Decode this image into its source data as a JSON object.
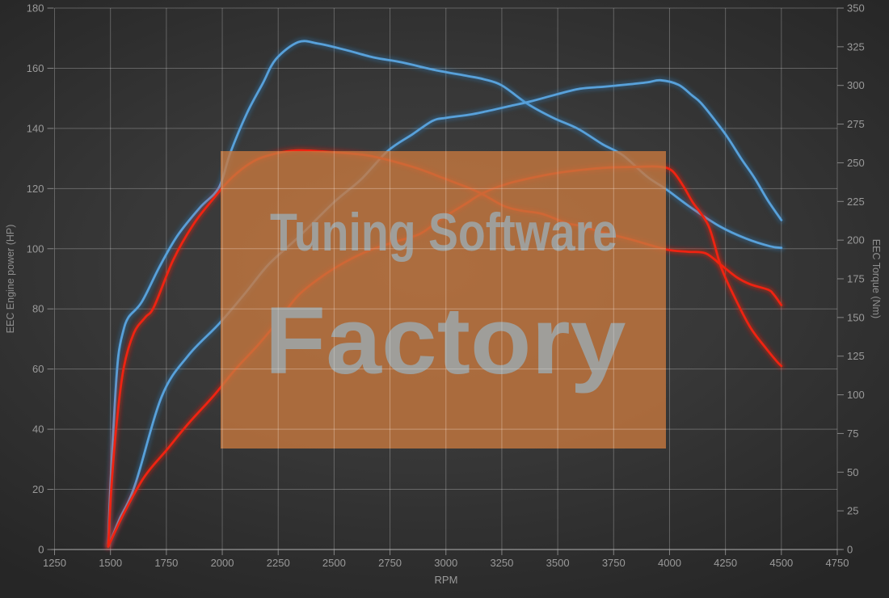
{
  "watermark": {
    "line1": "Tuning Software",
    "line2": "Factory",
    "bg_color": "#c7783f",
    "bg_opacity": 0.8,
    "text_color": "#9f9e9a"
  },
  "chart_data": {
    "type": "line",
    "title": "",
    "grid": true,
    "legend": "none",
    "x_axis": {
      "label": "RPM",
      "min": 1250,
      "max": 4750,
      "tick_step": 250
    },
    "y_axis_left": {
      "label": "EEC Engine power (HP)",
      "min": 0,
      "max": 180,
      "tick_step": 20
    },
    "y_axis_right": {
      "label": "EEC Torque (Nm)",
      "min": 0,
      "max": 350,
      "tick_step": 25
    },
    "series": [
      {
        "name": "torque-curve-blue",
        "axis": "right",
        "unit": "Nm",
        "color": "#58a1da",
        "glow_color": "#2f7ec2",
        "points": [
          [
            1490,
            4
          ],
          [
            1500,
            42
          ],
          [
            1520,
            95
          ],
          [
            1535,
            125
          ],
          [
            1555,
            140
          ],
          [
            1580,
            150
          ],
          [
            1640,
            160
          ],
          [
            1720,
            183
          ],
          [
            1800,
            203
          ],
          [
            1900,
            221
          ],
          [
            1985,
            234
          ],
          [
            2035,
            256
          ],
          [
            2110,
            282
          ],
          [
            2180,
            301
          ],
          [
            2240,
            317
          ],
          [
            2340,
            328
          ],
          [
            2430,
            327
          ],
          [
            2550,
            323
          ],
          [
            2680,
            318
          ],
          [
            2800,
            315
          ],
          [
            2950,
            310
          ],
          [
            3100,
            306
          ],
          [
            3170,
            304
          ],
          [
            3250,
            300
          ],
          [
            3366,
            288
          ],
          [
            3480,
            279
          ],
          [
            3590,
            272
          ],
          [
            3700,
            262
          ],
          [
            3790,
            255
          ],
          [
            3900,
            241
          ],
          [
            3984,
            233
          ],
          [
            4096,
            221
          ],
          [
            4223,
            209
          ],
          [
            4342,
            201
          ],
          [
            4450,
            196
          ],
          [
            4500,
            195
          ]
        ]
      },
      {
        "name": "power-curve-blue",
        "axis": "left",
        "unit": "HP",
        "color": "#58a1da",
        "glow_color": "#2f7ec2",
        "points": [
          [
            1490,
            1
          ],
          [
            1540,
            10
          ],
          [
            1610,
            21.5
          ],
          [
            1730,
            51
          ],
          [
            1848,
            64.5
          ],
          [
            1985,
            75
          ],
          [
            2100,
            85
          ],
          [
            2210,
            95
          ],
          [
            2343,
            104
          ],
          [
            2500,
            115.5
          ],
          [
            2620,
            123
          ],
          [
            2740,
            132.5
          ],
          [
            2850,
            138
          ],
          [
            2940,
            142.5
          ],
          [
            3000,
            143.5
          ],
          [
            3100,
            144.5
          ],
          [
            3170,
            145.5
          ],
          [
            3290,
            147.5
          ],
          [
            3380,
            149
          ],
          [
            3490,
            151.2
          ],
          [
            3600,
            153.2
          ],
          [
            3700,
            153.8
          ],
          [
            3800,
            154.5
          ],
          [
            3900,
            155.3
          ],
          [
            3960,
            156
          ],
          [
            4040,
            154.5
          ],
          [
            4100,
            151
          ],
          [
            4140,
            148.5
          ],
          [
            4200,
            143
          ],
          [
            4260,
            137
          ],
          [
            4320,
            130
          ],
          [
            4380,
            123.5
          ],
          [
            4440,
            116
          ],
          [
            4500,
            109.5
          ]
        ]
      },
      {
        "name": "torque-curve-red",
        "axis": "right",
        "unit": "Nm",
        "color": "#ef2312",
        "glow_color": "#ff1e0e",
        "points": [
          [
            1490,
            2
          ],
          [
            1505,
            42
          ],
          [
            1530,
            85
          ],
          [
            1560,
            118
          ],
          [
            1605,
            140
          ],
          [
            1655,
            150
          ],
          [
            1695,
            157
          ],
          [
            1780,
            187
          ],
          [
            1870,
            210
          ],
          [
            1950,
            225
          ],
          [
            2040,
            240
          ],
          [
            2140,
            251
          ],
          [
            2240,
            256
          ],
          [
            2330,
            258
          ],
          [
            2430,
            257.5
          ],
          [
            2530,
            256.5
          ],
          [
            2640,
            255
          ],
          [
            2750,
            251.5
          ],
          [
            2880,
            246
          ],
          [
            2990,
            240
          ],
          [
            3080,
            235
          ],
          [
            3160,
            230
          ],
          [
            3260,
            222
          ],
          [
            3340,
            219
          ],
          [
            3430,
            217
          ],
          [
            3540,
            211
          ],
          [
            3610,
            209
          ],
          [
            3700,
            205
          ],
          [
            3825,
            200.5
          ],
          [
            3984,
            194
          ],
          [
            4080,
            192.5
          ],
          [
            4161,
            191.5
          ],
          [
            4230,
            184
          ],
          [
            4300,
            176
          ],
          [
            4360,
            171.5
          ],
          [
            4440,
            168
          ],
          [
            4465,
            165
          ],
          [
            4500,
            158
          ]
        ]
      },
      {
        "name": "power-curve-red",
        "axis": "left",
        "unit": "HP",
        "color": "#ef2312",
        "glow_color": "#ff1e0e",
        "points": [
          [
            1490,
            1
          ],
          [
            1560,
            12
          ],
          [
            1650,
            24
          ],
          [
            1750,
            33
          ],
          [
            1850,
            42
          ],
          [
            1960,
            51
          ],
          [
            2060,
            60
          ],
          [
            2160,
            68
          ],
          [
            2250,
            76
          ],
          [
            2340,
            84.5
          ],
          [
            2450,
            91
          ],
          [
            2560,
            96
          ],
          [
            2660,
            99.5
          ],
          [
            2760,
            102
          ],
          [
            2885,
            105
          ],
          [
            2980,
            110
          ],
          [
            3090,
            115
          ],
          [
            3160,
            118.3
          ],
          [
            3270,
            121.5
          ],
          [
            3380,
            123.5
          ],
          [
            3500,
            125.2
          ],
          [
            3620,
            126.3
          ],
          [
            3730,
            127
          ],
          [
            3850,
            127.2
          ],
          [
            3950,
            127.3
          ],
          [
            4010,
            126
          ],
          [
            4060,
            121
          ],
          [
            4103,
            115.5
          ],
          [
            4175,
            107.5
          ],
          [
            4230,
            94
          ],
          [
            4290,
            84
          ],
          [
            4360,
            74
          ],
          [
            4430,
            67
          ],
          [
            4480,
            62.5
          ],
          [
            4500,
            61
          ]
        ]
      }
    ]
  }
}
